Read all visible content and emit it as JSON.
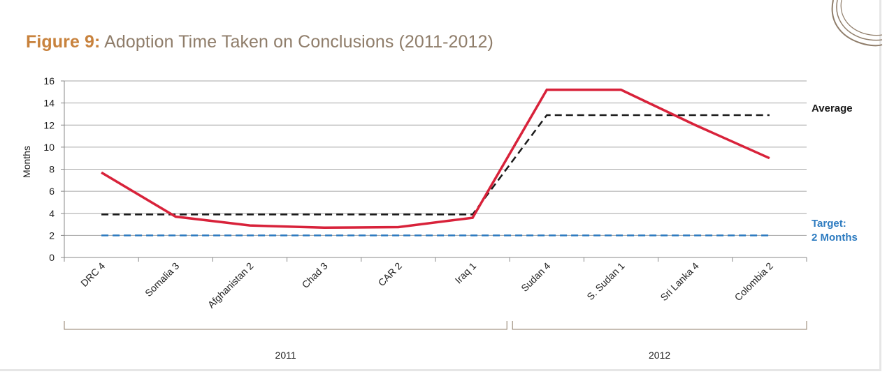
{
  "figure": {
    "label": "Figure 9:",
    "title": "Adoption Time Taken on Conclusions (2011-2012)"
  },
  "chart_data": {
    "type": "line",
    "ylabel": "Months",
    "ylim": [
      0,
      16
    ],
    "yticks": [
      0,
      2,
      4,
      6,
      8,
      10,
      12,
      14,
      16
    ],
    "grid": true,
    "categories": [
      "DRC 4",
      "Somalia 3",
      "Afghanistan 2",
      "Chad 3",
      "CAR 2",
      "Iraq 1",
      "Sudan 4",
      "S. Sudan 1",
      "Sri Lanka 4",
      "Colombia 2"
    ],
    "groups": [
      {
        "label": "2011",
        "from": 0,
        "to": 5
      },
      {
        "label": "2012",
        "from": 6,
        "to": 9
      }
    ],
    "series": [
      {
        "values": [
          7.7,
          3.7,
          2.9,
          2.7,
          2.75,
          3.6,
          15.2,
          15.2,
          12.0,
          9.0
        ],
        "color": "#d8223a",
        "style": "solid"
      },
      {
        "name": "Average",
        "values": [
          3.9,
          3.9,
          3.9,
          3.9,
          3.9,
          3.9,
          12.9,
          12.9,
          12.9,
          12.9
        ],
        "color": "#1a1a1a",
        "style": "dashed"
      },
      {
        "name": "Target: 2 Months",
        "name_lines": [
          "Target:",
          "2 Months"
        ],
        "values": [
          2,
          2,
          2,
          2,
          2,
          2,
          2,
          2,
          2,
          2
        ],
        "color": "#2d7bc0",
        "style": "dashed"
      }
    ]
  }
}
